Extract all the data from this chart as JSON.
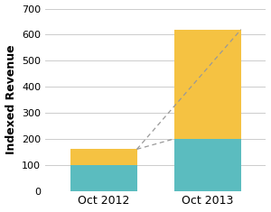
{
  "categories": [
    "Oct 2012",
    "Oct 2013"
  ],
  "bar_positions": [
    0.28,
    0.78
  ],
  "ios_values": [
    100,
    200
  ],
  "google_values": [
    60,
    420
  ],
  "ios_color": "#5BBCBF",
  "google_color": "#F5C242",
  "ylabel": "Indexed Revenue",
  "ylim": [
    0,
    700
  ],
  "yticks": [
    0,
    100,
    200,
    300,
    400,
    500,
    600,
    700
  ],
  "bar_width": 0.32,
  "background_color": "#ffffff",
  "grid_color": "#cccccc",
  "dashed_line_color": "#999999",
  "xlim": [
    0.0,
    1.06
  ]
}
